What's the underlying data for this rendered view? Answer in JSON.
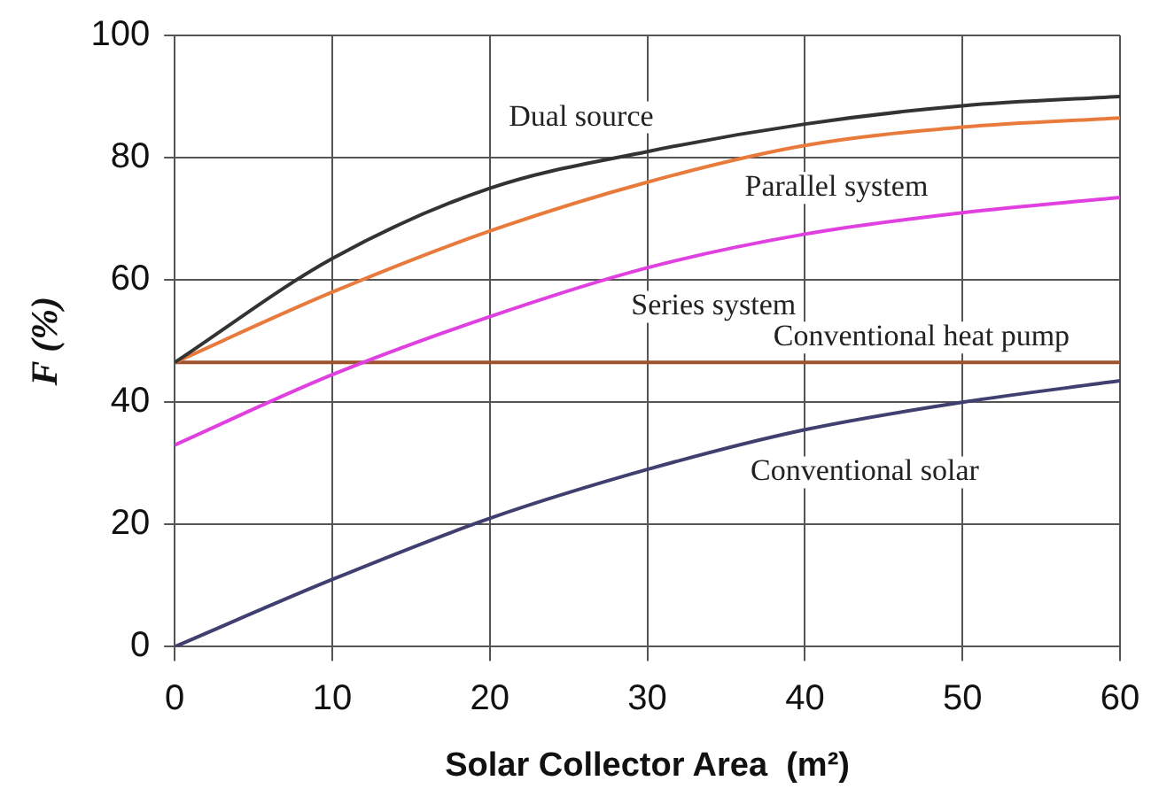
{
  "chart_data": {
    "type": "line",
    "xlabel": "Solar Collector Area  (m²)",
    "ylabel": "F (%)",
    "x": [
      0,
      10,
      20,
      30,
      40,
      50,
      60
    ],
    "xlim": [
      0,
      60
    ],
    "xticks": [
      0,
      10,
      20,
      30,
      40,
      50,
      60
    ],
    "ylim": [
      0,
      100
    ],
    "yticks": [
      0,
      20,
      40,
      60,
      80,
      100
    ],
    "grid": true,
    "legend": false,
    "marker": "none",
    "line_style": "solid",
    "series": [
      {
        "name": "Dual source",
        "color": "#333333",
        "values": [
          46.5,
          63.5,
          75,
          81,
          85.5,
          88.5,
          90
        ]
      },
      {
        "name": "Parallel system",
        "color": "#e87a3c",
        "values": [
          46.5,
          58,
          68,
          76,
          82,
          85,
          86.5
        ]
      },
      {
        "name": "Series system",
        "color": "#e040e0",
        "values": [
          33,
          44.5,
          54,
          62,
          67.5,
          71,
          73.5
        ]
      },
      {
        "name": "Conventional heat pump",
        "color": "#a0522d",
        "values": [
          46.5,
          46.5,
          46.5,
          46.5,
          46.5,
          46.5,
          46.5
        ]
      },
      {
        "name": "Conventional solar",
        "color": "#404070",
        "values": [
          0,
          11,
          21,
          29,
          35.5,
          40,
          43.5
        ]
      }
    ]
  }
}
